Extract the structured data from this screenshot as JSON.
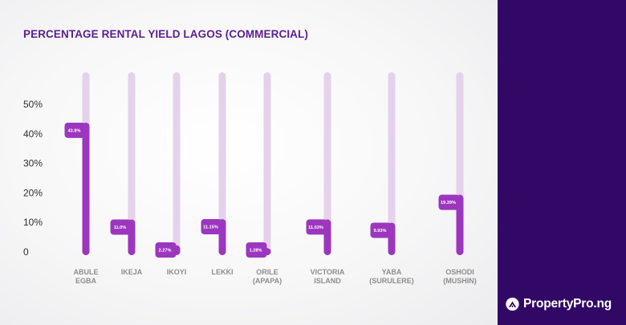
{
  "chart_data": {
    "type": "bar",
    "title": "PERCENTAGE RENTAL YIELD LAGOS (COMMERCIAL)",
    "categories": [
      [
        "ABULE",
        "EGBA"
      ],
      [
        "IKEJA"
      ],
      [
        "IKOYI"
      ],
      [
        "LEKKI"
      ],
      [
        "ORILE",
        "(APAPA)"
      ],
      [
        "VICTORIA",
        "ISLAND"
      ],
      [
        "YABA",
        "(SURULERE)"
      ],
      [
        "OSHODI",
        "(MUSHIN)"
      ]
    ],
    "values": [
      43.8,
      11.0,
      2.27,
      11.15,
      1.28,
      11.03,
      9.93,
      19.39
    ],
    "data_labels": [
      "43.8%",
      "11.0%",
      "2.27%",
      "11.15%",
      "1.28%",
      "11.03%",
      "9.93%",
      "19.39%"
    ],
    "y_ticks": [
      "0",
      "10%",
      "20%",
      "30%",
      "40%",
      "50%"
    ],
    "ylim": [
      0,
      50
    ],
    "grid": false,
    "colors": {
      "bar": "#9c36bf",
      "track": "#e4d2ea",
      "label_box": "#9c36bf",
      "title": "#5a1d8f"
    }
  },
  "brand": {
    "name": "PropertyPro.ng",
    "icon": "house-icon",
    "sidebar_color": "#320866"
  }
}
